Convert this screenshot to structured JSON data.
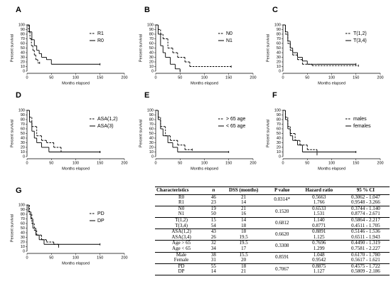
{
  "chart_data": [
    {
      "type": "step",
      "panel": "A",
      "y_label": "Percent survival",
      "x_label": "Months elapsed",
      "xlim": [
        0,
        200
      ],
      "ylim": [
        0,
        100
      ],
      "xticks": [
        0,
        50,
        100,
        150,
        200
      ],
      "yticks": [
        0,
        10,
        20,
        30,
        40,
        50,
        60,
        70,
        80,
        90,
        100
      ],
      "series": [
        {
          "name": "R1",
          "style": "dashed",
          "color": "#000000",
          "x": [
            0,
            3,
            6,
            9,
            12,
            15,
            18,
            22,
            26
          ],
          "values": [
            100,
            85,
            70,
            55,
            45,
            35,
            25,
            18,
            18
          ]
        },
        {
          "name": "R0",
          "style": "solid",
          "color": "#000000",
          "x": [
            0,
            5,
            10,
            15,
            20,
            25,
            30,
            40,
            50,
            150
          ],
          "values": [
            100,
            85,
            68,
            55,
            45,
            38,
            30,
            25,
            15,
            15
          ]
        }
      ]
    },
    {
      "type": "step",
      "panel": "B",
      "y_label": "Percent survival",
      "x_label": "Months elapsed",
      "xlim": [
        0,
        200
      ],
      "ylim": [
        0,
        100
      ],
      "xticks": [
        0,
        50,
        100,
        150,
        200
      ],
      "yticks": [
        0,
        10,
        20,
        30,
        40,
        50,
        60,
        70,
        80,
        90,
        100
      ],
      "series": [
        {
          "name": "N0",
          "style": "dashed",
          "color": "#000000",
          "x": [
            0,
            5,
            10,
            15,
            25,
            35,
            45,
            60,
            70,
            155
          ],
          "values": [
            100,
            90,
            80,
            70,
            50,
            40,
            30,
            20,
            10,
            10
          ]
        },
        {
          "name": "N1",
          "style": "solid",
          "color": "#000000",
          "x": [
            0,
            5,
            10,
            15,
            20,
            30,
            40,
            50
          ],
          "values": [
            100,
            80,
            55,
            40,
            30,
            15,
            5,
            0
          ]
        }
      ]
    },
    {
      "type": "step",
      "panel": "C",
      "y_label": "Percent survival",
      "x_label": "Months elapsed",
      "xlim": [
        0,
        200
      ],
      "ylim": [
        0,
        100
      ],
      "xticks": [
        0,
        50,
        100,
        150,
        200
      ],
      "yticks": [
        0,
        10,
        20,
        30,
        40,
        50,
        60,
        70,
        80,
        90,
        100
      ],
      "series": [
        {
          "name": "T(1,2)",
          "style": "dashed",
          "color": "#000000",
          "x": [
            0,
            5,
            10,
            15,
            20,
            30,
            40,
            60,
            155
          ],
          "values": [
            100,
            80,
            60,
            45,
            35,
            25,
            15,
            12,
            12
          ]
        },
        {
          "name": "T(3,4)",
          "style": "solid",
          "color": "#000000",
          "x": [
            0,
            5,
            10,
            15,
            20,
            30,
            40,
            50,
            70,
            150
          ],
          "values": [
            100,
            85,
            65,
            50,
            40,
            30,
            22,
            15,
            15,
            15
          ]
        }
      ]
    },
    {
      "type": "step",
      "panel": "D",
      "y_label": "Percent survival",
      "x_label": "Months elapsed",
      "xlim": [
        0,
        200
      ],
      "ylim": [
        0,
        100
      ],
      "xticks": [
        0,
        50,
        100,
        150,
        200
      ],
      "yticks": [
        0,
        10,
        20,
        30,
        40,
        50,
        60,
        70,
        80,
        90,
        100
      ],
      "series": [
        {
          "name": "ASA(1,2)",
          "style": "dashed",
          "color": "#000000",
          "x": [
            0,
            5,
            10,
            20,
            30,
            40,
            55,
            70,
            150
          ],
          "values": [
            100,
            85,
            65,
            45,
            35,
            30,
            20,
            10,
            10
          ]
        },
        {
          "name": "ASA(3)",
          "style": "solid",
          "color": "#000000",
          "x": [
            0,
            5,
            10,
            15,
            20,
            30,
            45,
            150
          ],
          "values": [
            100,
            75,
            55,
            40,
            30,
            20,
            10,
            10
          ]
        }
      ]
    },
    {
      "type": "step",
      "panel": "E",
      "y_label": "Percent survival",
      "x_label": "Months elapsed",
      "xlim": [
        0,
        200
      ],
      "ylim": [
        0,
        100
      ],
      "xticks": [
        0,
        50,
        100,
        150,
        200
      ],
      "yticks": [
        0,
        10,
        20,
        30,
        40,
        50,
        60,
        70,
        80,
        90,
        100
      ],
      "series": [
        {
          "name": "> 65 age",
          "style": "dashed",
          "color": "#000000",
          "x": [
            0,
            5,
            10,
            20,
            30,
            45,
            60,
            75
          ],
          "values": [
            100,
            85,
            65,
            45,
            35,
            25,
            15,
            15
          ]
        },
        {
          "name": "< 65 age",
          "style": "solid",
          "color": "#000000",
          "x": [
            0,
            5,
            10,
            15,
            25,
            35,
            45,
            150
          ],
          "values": [
            100,
            80,
            60,
            45,
            30,
            20,
            10,
            10
          ]
        }
      ]
    },
    {
      "type": "step",
      "panel": "F",
      "y_label": "Percent survival",
      "x_label": "Months elapsed",
      "xlim": [
        0,
        200
      ],
      "ylim": [
        0,
        100
      ],
      "xticks": [
        0,
        50,
        100,
        150,
        200
      ],
      "yticks": [
        0,
        10,
        20,
        30,
        40,
        50,
        60,
        70,
        80,
        90,
        100
      ],
      "series": [
        {
          "name": "males",
          "style": "dashed",
          "color": "#000000",
          "x": [
            0,
            5,
            10,
            15,
            25,
            35,
            50,
            70
          ],
          "values": [
            100,
            85,
            65,
            50,
            35,
            25,
            15,
            5
          ]
        },
        {
          "name": "females",
          "style": "solid",
          "color": "#000000",
          "x": [
            0,
            5,
            10,
            15,
            20,
            30,
            40,
            150
          ],
          "values": [
            100,
            80,
            60,
            45,
            35,
            25,
            10,
            10
          ]
        }
      ]
    },
    {
      "type": "step",
      "panel": "G",
      "y_label": "Percent survival",
      "x_label": "Months elapsed",
      "xlim": [
        0,
        200
      ],
      "ylim": [
        0,
        100
      ],
      "xticks": [
        0,
        50,
        100,
        150,
        200
      ],
      "yticks": [
        0,
        10,
        20,
        30,
        40,
        50,
        60,
        70,
        80,
        90,
        100
      ],
      "series": [
        {
          "name": "PD",
          "style": "dashed",
          "color": "#000000",
          "x": [
            0,
            5,
            10,
            15,
            20,
            30,
            40,
            55,
            65
          ],
          "values": [
            100,
            80,
            60,
            45,
            35,
            25,
            20,
            15,
            10
          ]
        },
        {
          "name": "DP",
          "style": "solid",
          "color": "#000000",
          "x": [
            0,
            3,
            8,
            12,
            18,
            25,
            35,
            150
          ],
          "values": [
            100,
            85,
            70,
            50,
            35,
            25,
            15,
            15
          ]
        }
      ]
    }
  ],
  "table": {
    "header": [
      "Characteristics",
      "n",
      "DSS (months)",
      "P value",
      "Hazard ratio",
      "95 % CI"
    ],
    "groups": [
      {
        "rows": [
          [
            "R0",
            "46",
            "21",
            "0.5663",
            "0.3062 - 1.047"
          ],
          [
            "R1",
            "23",
            "14",
            "1.766",
            "0.9548 - 3.266"
          ]
        ],
        "p": "0.0314*"
      },
      {
        "rows": [
          [
            "N0",
            "19",
            "21",
            "0.6533",
            "0.3744 - 1.140"
          ],
          [
            "N1",
            "50",
            "16",
            "1.531",
            "0.8774 - 2.671"
          ]
        ],
        "p": "0.1520"
      },
      {
        "rows": [
          [
            "T(1,2)",
            "15",
            "14",
            "1.140",
            "0.5864 - 2.217"
          ],
          [
            "T(3,4)",
            "54",
            "18",
            "0.8771",
            "0.4511 - 1.705"
          ]
        ],
        "p": "0.6812"
      },
      {
        "rows": [
          [
            "ASA(1,2)",
            "43",
            "18",
            "0.8891",
            "0.5146 - 1.536"
          ],
          [
            "ASA(3,4)",
            "26",
            "19.5",
            "1.125",
            "0.6511 - 1.943"
          ]
        ],
        "p": "0.6620"
      },
      {
        "rows": [
          [
            "Age > 65",
            "32",
            "19.5",
            "0.7696",
            "0.4490 - 1.319"
          ],
          [
            "Age < 65",
            "34",
            "17",
            "1.299",
            "0.7581 - 2.227"
          ]
        ],
        "p": "0.3308"
      },
      {
        "rows": [
          [
            "Male",
            "38",
            "15.5",
            "1.048",
            "0.6170 - 1.780"
          ],
          [
            "Female",
            "31",
            "20",
            "0.9542",
            "0.5617 - 1.621"
          ]
        ],
        "p": "0.8591"
      },
      {
        "rows": [
          [
            "PD",
            "55",
            "18",
            "0.8875",
            "0.4575 - 1.722"
          ],
          [
            "DP",
            "14",
            "21",
            "1.127",
            "0.5809 - 2.186"
          ]
        ],
        "p": "0.7067"
      }
    ]
  }
}
